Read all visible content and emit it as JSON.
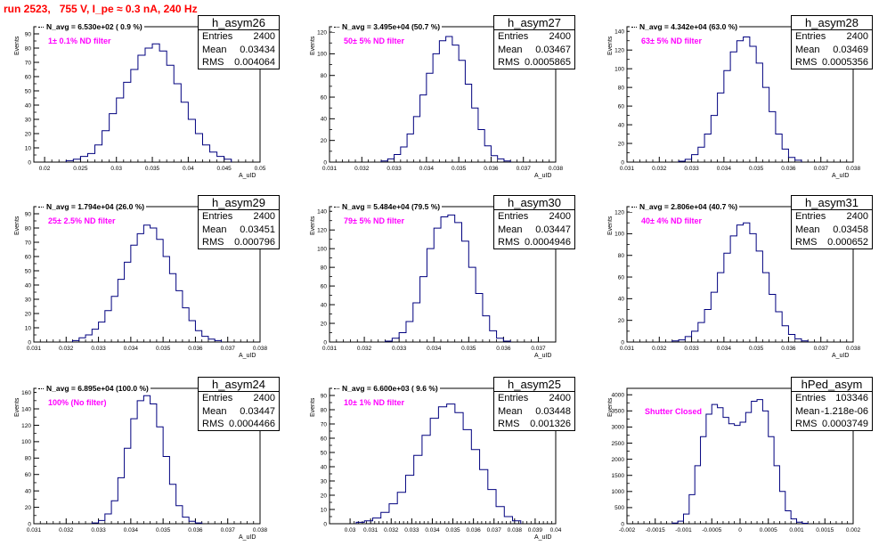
{
  "header": {
    "title": "run 2523,   755 V, I_pe ≈ 0.3 nA, 240 Hz"
  },
  "stat_labels": {
    "entries": "Entries",
    "mean": "Mean",
    "rms": "RMS"
  },
  "colors": {
    "hist_line": "#00007f",
    "title_red": "#ff0000",
    "filter_magenta": "#ff00ff",
    "axis": "#000000"
  },
  "chart_data": [
    {
      "type": "histogram",
      "name": "h_asym26",
      "navg": "N_avg = 6.530e+02 ( 0.9 %)",
      "filter": "1± 0.1% ND filter",
      "entries": "2400",
      "mean": "0.03434",
      "rms": "0.004064",
      "ylabel": "Events",
      "xlabel": "A_uID",
      "xlim": [
        0.0185,
        0.05
      ],
      "ylim": [
        0,
        95
      ],
      "xticks": [
        "0.02",
        "0.025",
        "0.03",
        "0.035",
        "0.04",
        "0.045",
        "0.05"
      ],
      "yticks": [
        "0",
        "10",
        "20",
        "30",
        "40",
        "50",
        "60",
        "70",
        "80",
        "90"
      ],
      "x": [
        0.0235,
        0.0245,
        0.0255,
        0.0265,
        0.0275,
        0.0285,
        0.0295,
        0.0305,
        0.0315,
        0.0325,
        0.0335,
        0.0345,
        0.0355,
        0.0365,
        0.0375,
        0.0385,
        0.0395,
        0.0405,
        0.0415,
        0.0425,
        0.0435,
        0.0445,
        0.0455
      ],
      "y": [
        1,
        2,
        4,
        6,
        12,
        22,
        34,
        45,
        56,
        65,
        75,
        80,
        83,
        78,
        68,
        55,
        42,
        30,
        20,
        12,
        7,
        4,
        2
      ]
    },
    {
      "type": "histogram",
      "name": "h_asym27",
      "navg": "N_avg = 3.495e+04 (50.7 %)",
      "filter": "50± 5% ND filter",
      "entries": "2400",
      "mean": "0.03467",
      "rms": "0.0005865",
      "ylabel": "Events",
      "xlabel": "A_uID",
      "xlim": [
        0.031,
        0.038
      ],
      "ylim": [
        0,
        125
      ],
      "xticks": [
        "0.031",
        "0.032",
        "0.033",
        "0.034",
        "0.035",
        "0.036",
        "0.037",
        "0.038"
      ],
      "yticks": [
        "0",
        "20",
        "40",
        "60",
        "80",
        "100",
        "120"
      ],
      "x": [
        0.0327,
        0.0329,
        0.0331,
        0.0333,
        0.0335,
        0.0337,
        0.0339,
        0.0341,
        0.0343,
        0.0345,
        0.0347,
        0.0349,
        0.0351,
        0.0353,
        0.0355,
        0.0357,
        0.0359,
        0.0361,
        0.0363,
        0.0365
      ],
      "y": [
        1,
        3,
        7,
        14,
        26,
        42,
        62,
        82,
        100,
        112,
        116,
        108,
        94,
        72,
        50,
        30,
        15,
        6,
        3,
        1
      ]
    },
    {
      "type": "histogram",
      "name": "h_asym28",
      "navg": "N_avg = 4.342e+04 (63.0 %)",
      "filter": "63± 5% ND filter",
      "entries": "2400",
      "mean": "0.03469",
      "rms": "0.0005356",
      "ylabel": "Events",
      "xlabel": "A_uID",
      "xlim": [
        0.031,
        0.038
      ],
      "ylim": [
        0,
        145
      ],
      "xticks": [
        "0.031",
        "0.032",
        "0.033",
        "0.034",
        "0.035",
        "0.036",
        "0.037",
        "0.038"
      ],
      "yticks": [
        "0",
        "20",
        "40",
        "60",
        "80",
        "100",
        "120",
        "140"
      ],
      "x": [
        0.0327,
        0.0329,
        0.0331,
        0.0333,
        0.0335,
        0.0337,
        0.0339,
        0.0341,
        0.0343,
        0.0345,
        0.0347,
        0.0349,
        0.0351,
        0.0353,
        0.0355,
        0.0357,
        0.0359,
        0.0361,
        0.0363
      ],
      "y": [
        1,
        3,
        8,
        16,
        30,
        50,
        74,
        98,
        118,
        130,
        134,
        124,
        106,
        80,
        54,
        30,
        14,
        5,
        2
      ]
    },
    {
      "type": "histogram",
      "name": "h_asym29",
      "navg": "N_avg = 1.794e+04 (26.0 %)",
      "filter": "25± 2.5% ND filter",
      "entries": "2400",
      "mean": "0.03451",
      "rms": "0.000796",
      "ylabel": "Events",
      "xlabel": "A_uID",
      "xlim": [
        0.031,
        0.038
      ],
      "ylim": [
        0,
        95
      ],
      "xticks": [
        "0.031",
        "0.032",
        "0.033",
        "0.034",
        "0.035",
        "0.036",
        "0.037",
        "0.038"
      ],
      "yticks": [
        "0",
        "10",
        "20",
        "30",
        "40",
        "50",
        "60",
        "70",
        "80",
        "90"
      ],
      "x": [
        0.0323,
        0.0325,
        0.0327,
        0.0329,
        0.0331,
        0.0333,
        0.0335,
        0.0337,
        0.0339,
        0.0341,
        0.0343,
        0.0345,
        0.0347,
        0.0349,
        0.0351,
        0.0353,
        0.0355,
        0.0357,
        0.0359,
        0.0361,
        0.0363,
        0.0365,
        0.0367
      ],
      "y": [
        1,
        3,
        5,
        9,
        14,
        22,
        32,
        44,
        56,
        68,
        76,
        82,
        80,
        72,
        60,
        48,
        36,
        24,
        15,
        8,
        4,
        2,
        1
      ]
    },
    {
      "type": "histogram",
      "name": "h_asym30",
      "navg": "N_avg = 5.484e+04 (79.5 %)",
      "filter": "79± 5% ND filter",
      "entries": "2400",
      "mean": "0.03447",
      "rms": "0.0004946",
      "ylabel": "Events",
      "xlabel": "A_uID",
      "xlim": [
        0.031,
        0.0375
      ],
      "ylim": [
        0,
        145
      ],
      "xticks": [
        "0.031",
        "0.032",
        "0.033",
        "0.034",
        "0.035",
        "0.036",
        "0.037"
      ],
      "yticks": [
        "0",
        "20",
        "40",
        "60",
        "80",
        "100",
        "120",
        "140"
      ],
      "x": [
        0.0327,
        0.0329,
        0.0331,
        0.0333,
        0.0335,
        0.0337,
        0.0339,
        0.0341,
        0.0343,
        0.0345,
        0.0347,
        0.0349,
        0.0351,
        0.0353,
        0.0355,
        0.0357,
        0.0359,
        0.0361
      ],
      "y": [
        1,
        4,
        10,
        22,
        42,
        70,
        100,
        122,
        134,
        136,
        128,
        108,
        80,
        52,
        28,
        12,
        4,
        1
      ]
    },
    {
      "type": "histogram",
      "name": "h_asym31",
      "navg": "N_avg = 2.806e+04 (40.7 %)",
      "filter": "40± 4% ND filter",
      "entries": "2400",
      "mean": "0.03458",
      "rms": "0.000652",
      "ylabel": "Events",
      "xlabel": "A_uID",
      "xlim": [
        0.031,
        0.038
      ],
      "ylim": [
        0,
        125
      ],
      "xticks": [
        "0.031",
        "0.032",
        "0.033",
        "0.034",
        "0.035",
        "0.036",
        "0.037",
        "0.038"
      ],
      "yticks": [
        "0",
        "20",
        "40",
        "60",
        "80",
        "100",
        "120"
      ],
      "x": [
        0.0325,
        0.0327,
        0.0329,
        0.0331,
        0.0333,
        0.0335,
        0.0337,
        0.0339,
        0.0341,
        0.0343,
        0.0345,
        0.0347,
        0.0349,
        0.0351,
        0.0353,
        0.0355,
        0.0357,
        0.0359,
        0.0361,
        0.0363,
        0.0365
      ],
      "y": [
        1,
        2,
        5,
        10,
        18,
        30,
        46,
        64,
        82,
        98,
        108,
        110,
        100,
        84,
        64,
        44,
        28,
        15,
        7,
        3,
        1
      ]
    },
    {
      "type": "histogram",
      "name": "h_asym24",
      "navg": "N_avg = 6.895e+04 (100.0 %)",
      "filter": "100% (No filter)",
      "entries": "2400",
      "mean": "0.03447",
      "rms": "0.0004466",
      "ylabel": "Events",
      "xlabel": "A_uID",
      "xlim": [
        0.031,
        0.038
      ],
      "ylim": [
        0,
        165
      ],
      "xticks": [
        "0.031",
        "0.032",
        "0.033",
        "0.034",
        "0.035",
        "0.036",
        "0.037",
        "0.038"
      ],
      "yticks": [
        "0",
        "20",
        "40",
        "60",
        "80",
        "100",
        "120",
        "140",
        "160"
      ],
      "x": [
        0.0329,
        0.0331,
        0.0333,
        0.0335,
        0.0337,
        0.0339,
        0.0341,
        0.0343,
        0.0345,
        0.0347,
        0.0349,
        0.0351,
        0.0353,
        0.0355,
        0.0357,
        0.0359,
        0.0361
      ],
      "y": [
        1,
        4,
        12,
        28,
        56,
        92,
        128,
        150,
        156,
        146,
        118,
        82,
        48,
        22,
        8,
        3,
        1
      ]
    },
    {
      "type": "histogram",
      "name": "h_asym25",
      "navg": "N_avg = 6.600e+03 ( 9.6 %)",
      "filter": "10± 1% ND filter",
      "entries": "2400",
      "mean": "0.03448",
      "rms": "0.001326",
      "ylabel": "Events",
      "xlabel": "A_uID",
      "xlim": [
        0.029,
        0.04
      ],
      "ylim": [
        0,
        95
      ],
      "xticks": [
        "0.03",
        "0.031",
        "0.032",
        "0.033",
        "0.034",
        "0.035",
        "0.036",
        "0.037",
        "0.038",
        "0.039",
        "0.04"
      ],
      "yticks": [
        "0",
        "10",
        "20",
        "30",
        "40",
        "50",
        "60",
        "70",
        "80",
        "90"
      ],
      "x": [
        0.0305,
        0.0309,
        0.0313,
        0.0317,
        0.0321,
        0.0325,
        0.0329,
        0.0333,
        0.0337,
        0.0341,
        0.0345,
        0.0349,
        0.0353,
        0.0357,
        0.0361,
        0.0365,
        0.0369,
        0.0373,
        0.0377,
        0.0381
      ],
      "y": [
        1,
        2,
        4,
        8,
        14,
        22,
        34,
        48,
        62,
        74,
        82,
        84,
        78,
        66,
        52,
        38,
        24,
        12,
        5,
        2
      ]
    },
    {
      "type": "histogram",
      "name": "hPed_asym",
      "navg": "",
      "filter": "Shutter Closed",
      "entries": "103346",
      "mean": "-1.218e-06",
      "rms": "0.0003749",
      "ylabel": "Events",
      "xlabel": "",
      "xlim": [
        -0.002,
        0.002
      ],
      "ylim": [
        0,
        4200
      ],
      "xticks": [
        "-0.002",
        "-0.0015",
        "-0.001",
        "-0.0005",
        "0",
        "0.0005",
        "0.001",
        "0.0015",
        "0.002"
      ],
      "yticks": [
        "0",
        "500",
        "1000",
        "1500",
        "2000",
        "2500",
        "3000",
        "3500",
        "4000"
      ],
      "x": [
        -0.00115,
        -0.00105,
        -0.00095,
        -0.00085,
        -0.00075,
        -0.00065,
        -0.00055,
        -0.00045,
        -0.00035,
        -0.00025,
        -0.00015,
        -5e-05,
        5e-05,
        0.00015,
        0.00025,
        0.00035,
        0.00045,
        0.00055,
        0.00065,
        0.00075,
        0.00085,
        0.00095,
        0.00105,
        0.00115
      ],
      "y": [
        20,
        80,
        300,
        900,
        1800,
        2700,
        3400,
        3700,
        3600,
        3300,
        3100,
        3050,
        3150,
        3450,
        3800,
        3850,
        3500,
        2700,
        1800,
        1000,
        400,
        150,
        50,
        15
      ]
    }
  ]
}
